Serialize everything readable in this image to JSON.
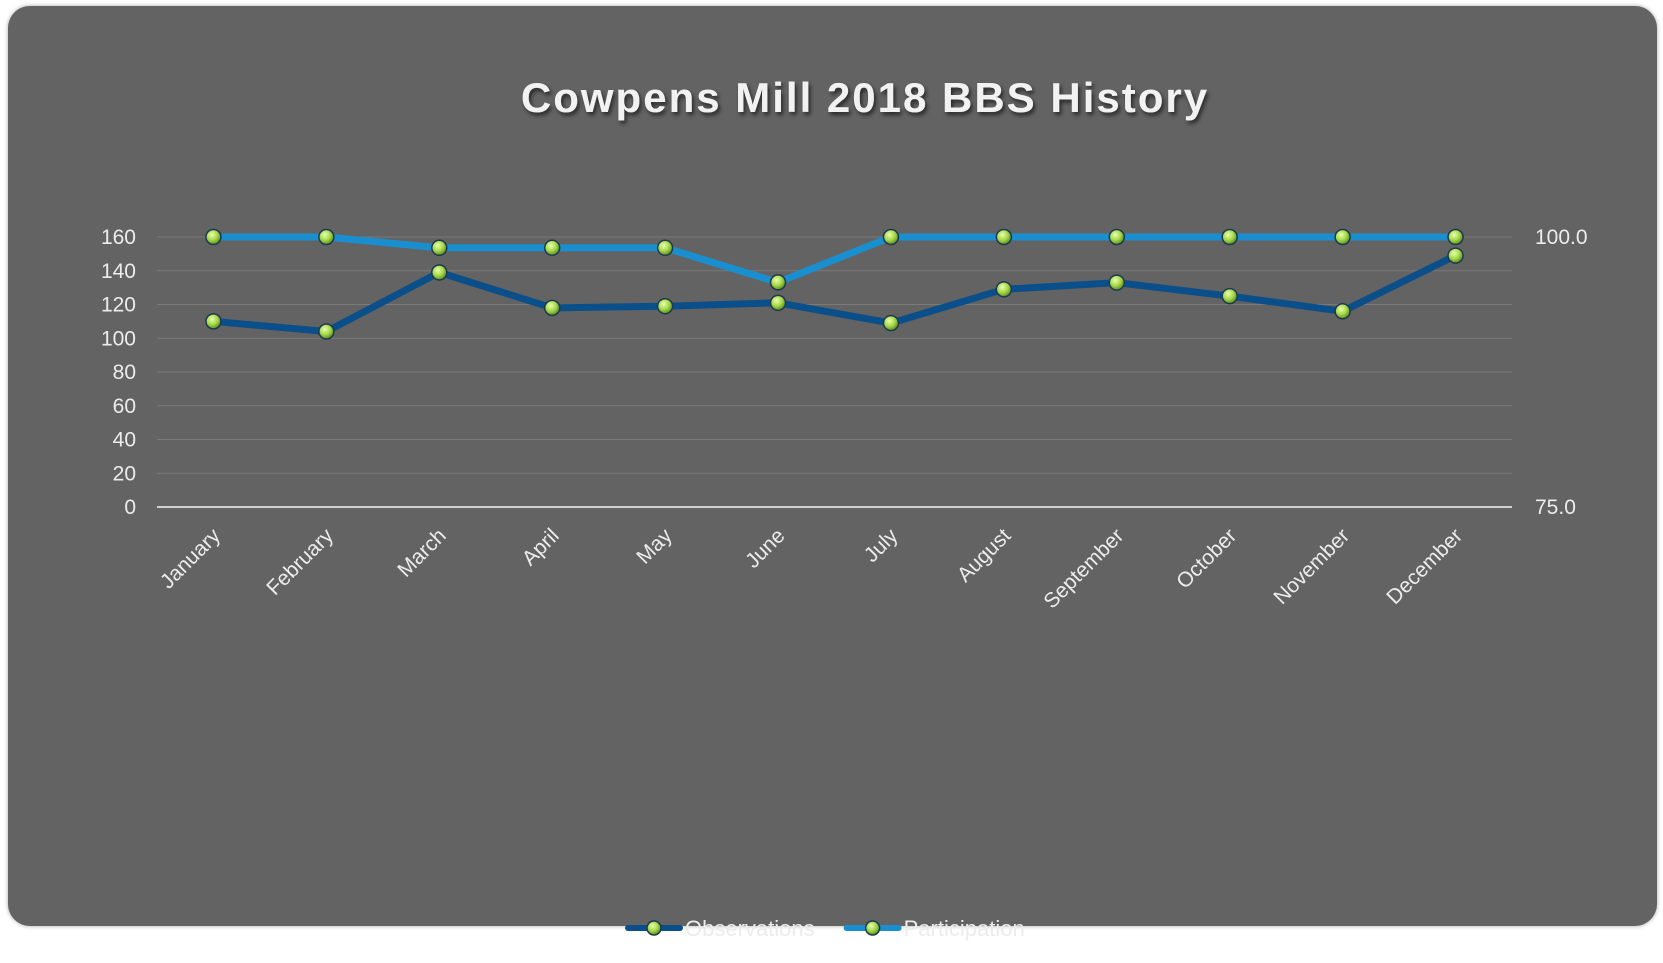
{
  "chart_data": {
    "type": "line",
    "title": "Cowpens Mill 2018 BBS History",
    "categories": [
      "January",
      "February",
      "March",
      "April",
      "May",
      "June",
      "July",
      "August",
      "September",
      "October",
      "November",
      "December"
    ],
    "series": [
      {
        "name": "Observations",
        "axis": "left",
        "color": "#0b4f8a",
        "values": [
          110,
          104,
          139,
          118,
          119,
          121,
          109,
          129,
          133,
          125,
          116,
          149
        ]
      },
      {
        "name": "Participation",
        "axis": "right",
        "color": "#1a8fd0",
        "values": [
          100.0,
          100.0,
          99.0,
          99.0,
          99.0,
          95.8,
          100.0,
          100.0,
          100.0,
          100.0,
          100.0,
          100.0
        ]
      }
    ],
    "y_left": {
      "min": 0,
      "max": 160,
      "ticks": [
        "0",
        "20",
        "40",
        "60",
        "80",
        "100",
        "120",
        "140",
        "160"
      ]
    },
    "y_right": {
      "min": 75.0,
      "max": 100.0,
      "ticks": [
        "75.0",
        "100.0"
      ]
    },
    "grid": true,
    "legend": "bottom",
    "marker_color": "#b6e35a"
  }
}
